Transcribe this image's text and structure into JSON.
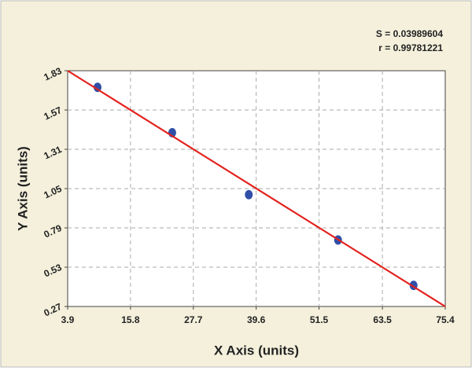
{
  "chart_data": {
    "type": "scatter",
    "x_label": "X Axis (units)",
    "y_label": "Y Axis (units)",
    "annotations": [
      "S = 0.03989604",
      "r = 0.99781221"
    ],
    "series": [
      {
        "style": "markers",
        "color": "#2f4fa8",
        "x": [
          9.56,
          23.7,
          38.2,
          55.1,
          69.4
        ],
        "values": [
          1.72,
          1.42,
          1.01,
          0.71,
          0.41
        ]
      },
      {
        "style": "line",
        "color": "#e3201b",
        "x": [
          3.9,
          75.4
        ],
        "values": [
          1.83,
          0.27
        ]
      }
    ],
    "xlim": [
      3.9,
      75.4
    ],
    "xticks": [
      3.9,
      15.8,
      27.7,
      39.6,
      51.5,
      63.5,
      75.4
    ],
    "ylim": [
      0.27,
      1.83
    ],
    "yticks": [
      0.27,
      0.53,
      0.79,
      1.05,
      1.31,
      1.57,
      1.83
    ],
    "grid": true
  }
}
